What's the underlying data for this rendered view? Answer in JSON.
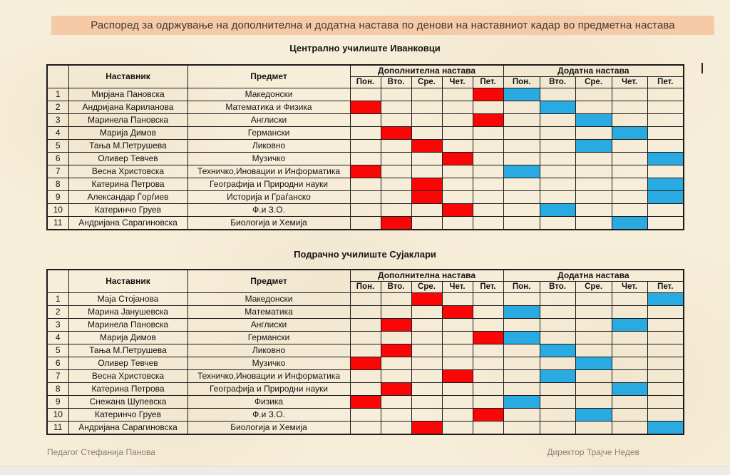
{
  "page": {
    "title": "Распоред за одржување на дополнителна и додатна настава по денови на наставниот кадар во предметна настава",
    "footer_left": "Педагог Стефанија Панова",
    "footer_right": "Директор Трајче Недев"
  },
  "colors": {
    "supplementary_red": "#fa0606",
    "additional_blue": "#29abe2",
    "banner_peach": "#f6c9a7",
    "paper_beige": "#f7eeda"
  },
  "table_headers": {
    "number": "",
    "teacher": "Наставник",
    "subject": "Предмет",
    "supplementary_group": "Дополнителна настава",
    "additional_group": "Додатна настава",
    "days": [
      "Пон.",
      "Вто.",
      "Сре.",
      "Чет.",
      "Пет."
    ]
  },
  "tables": [
    {
      "school_title": "Централно училиште Иванковци",
      "rows": [
        {
          "num": "1",
          "teacher": "Мирјана Пановска",
          "subject": "Македонски",
          "supplementary_day": 4,
          "additional_day": 0
        },
        {
          "num": "2",
          "teacher": "Андријана Кариланова",
          "subject": "Математика и Физика",
          "supplementary_day": 0,
          "additional_day": 1
        },
        {
          "num": "3",
          "teacher": "Маринела Пановска",
          "subject": "Англиски",
          "supplementary_day": 4,
          "additional_day": 2
        },
        {
          "num": "4",
          "teacher": "Марија Димов",
          "subject": "Германски",
          "supplementary_day": 1,
          "additional_day": 3
        },
        {
          "num": "5",
          "teacher": "Тања М.Петрушева",
          "subject": "Ликовно",
          "supplementary_day": 2,
          "additional_day": 2
        },
        {
          "num": "6",
          "teacher": "Оливер Тевчев",
          "subject": "Музичко",
          "supplementary_day": 3,
          "additional_day": 4
        },
        {
          "num": "7",
          "teacher": "Весна Христовска",
          "subject": "Техничко,Иновации и Информатика",
          "supplementary_day": 0,
          "additional_day": 0
        },
        {
          "num": "8",
          "teacher": "Катерина Петрова",
          "subject": "Географија и Природни науки",
          "supplementary_day": 2,
          "additional_day": 4
        },
        {
          "num": "9",
          "teacher": "Александар Ѓорѓиев",
          "subject": "Историја и Граѓанско",
          "supplementary_day": 2,
          "additional_day": 4
        },
        {
          "num": "10",
          "teacher": "Катеринчо Груев",
          "subject": "Ф.и З.О.",
          "supplementary_day": 3,
          "additional_day": 1
        },
        {
          "num": "11",
          "teacher": "Андријана Сарагиновска",
          "subject": "Биологија и Хемија",
          "supplementary_day": 1,
          "additional_day": 3
        }
      ]
    },
    {
      "school_title": "Подрачно училиште Сујаклари",
      "rows": [
        {
          "num": "1",
          "teacher": "Маја Стојанова",
          "subject": "Македонски",
          "supplementary_day": 2,
          "additional_day": 4
        },
        {
          "num": "2",
          "teacher": "Марина Јанушевска",
          "subject": "Математика",
          "supplementary_day": 3,
          "additional_day": 0
        },
        {
          "num": "3",
          "teacher": "Маринела Пановска",
          "subject": "Англиски",
          "supplementary_day": 1,
          "additional_day": 3
        },
        {
          "num": "4",
          "teacher": "Марија Димов",
          "subject": "Германски",
          "supplementary_day": 4,
          "additional_day": 0
        },
        {
          "num": "5",
          "teacher": "Тања М.Петрушева",
          "subject": "Ликовно",
          "supplementary_day": 1,
          "additional_day": 1
        },
        {
          "num": "6",
          "teacher": "Оливер Тевчев",
          "subject": "Музичко",
          "supplementary_day": 0,
          "additional_day": 2
        },
        {
          "num": "7",
          "teacher": "Весна Христовска",
          "subject": "Техничко,Иновации и Информатика",
          "supplementary_day": 3,
          "additional_day": 1
        },
        {
          "num": "8",
          "teacher": "Катерина Петрова",
          "subject": "Географија и Природни науки",
          "supplementary_day": 1,
          "additional_day": 3
        },
        {
          "num": "9",
          "teacher": "Снежана Шупевска",
          "subject": "Физика",
          "supplementary_day": 0,
          "additional_day": 0
        },
        {
          "num": "10",
          "teacher": "Катеринчо Груев",
          "subject": "Ф.и З.О.",
          "supplementary_day": 4,
          "additional_day": 2
        },
        {
          "num": "11",
          "teacher": "Андријана Сарагиновска",
          "subject": "Биологија и Хемија",
          "supplementary_day": 2,
          "additional_day": 4
        }
      ]
    }
  ]
}
